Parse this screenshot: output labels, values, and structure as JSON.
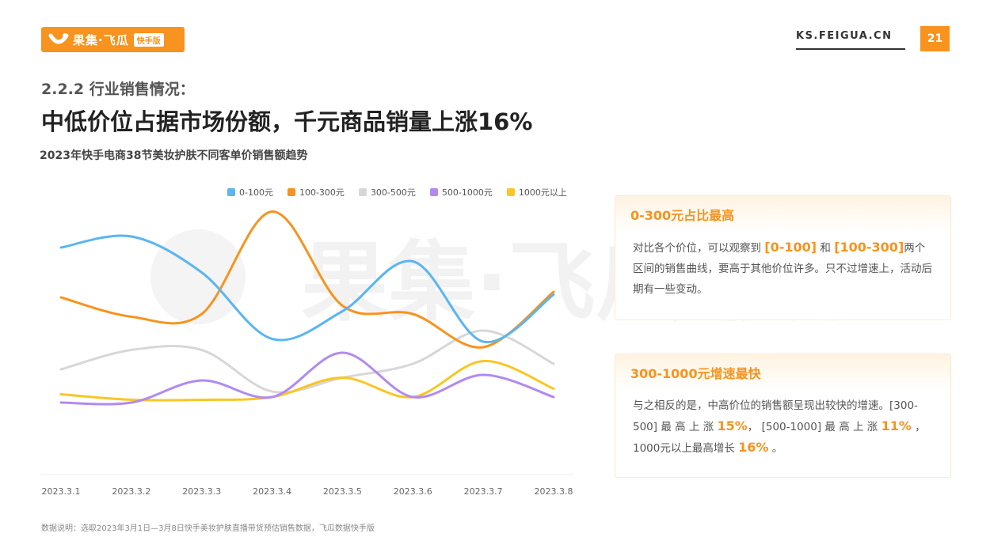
{
  "header": {
    "logo_text": "果集·飞瓜",
    "logo_badge": "快手版",
    "site": "KS.FEIGUA.CN",
    "page_number": "21"
  },
  "section_label": "2.2.2 行业销售情况：",
  "headline": "中低价位占据市场份额，千元商品销量上涨16%",
  "chart_title": "2023年快手电商38节美妆护肤不同客单价销售额趋势",
  "watermark": "果集·飞瓜 快手版",
  "chart_data": {
    "type": "line",
    "x": [
      "2023.3.1",
      "2023.3.2",
      "2023.3.3",
      "2023.3.4",
      "2023.3.5",
      "2023.3.6",
      "2023.3.7",
      "2023.3.8"
    ],
    "ylim": [
      0,
      100
    ],
    "grid": false,
    "legend_position": "top",
    "series": [
      {
        "name": "0-100元",
        "color": "#5bb5f0",
        "values": [
          82,
          86,
          73,
          49,
          59,
          77,
          48,
          65
        ]
      },
      {
        "name": "100-300元",
        "color": "#f7931e",
        "values": [
          64,
          57,
          58,
          95,
          61,
          58,
          46,
          66
        ]
      },
      {
        "name": "300-500元",
        "color": "#d7d7d7",
        "values": [
          38,
          45,
          45,
          30,
          35,
          40,
          52,
          40
        ]
      },
      {
        "name": "500-1000元",
        "color": "#b18af0",
        "values": [
          26,
          26,
          34,
          28,
          44,
          28,
          36,
          28
        ]
      },
      {
        "name": "1000元以上",
        "color": "#f9c623",
        "values": [
          29,
          27,
          27,
          28,
          35,
          28,
          41,
          31
        ]
      }
    ]
  },
  "note": "数据说明：选取2023年3月1日—3月8日快手美妆护肤直播带货预估销售数据，飞瓜数据快手版",
  "card1": {
    "title": "0-300元占比最高",
    "p1": "对比各个价位，可以观察到 ",
    "hl1": "[0-100]",
    "p2": " 和 ",
    "hl2": "[100-300]",
    "p3": "两个区间的销售曲线，要高于其他价位许多。只不过增速上，活动后期有一些变动。"
  },
  "card2": {
    "title": "300-1000元增速最快",
    "p1": "与之相反的是，中高价位的销售额呈现出较快的增速。[300-500] 最 高 上 涨 ",
    "hl1": "15%",
    "p2": "， [500-1000] 最 高 上 涨 ",
    "hl2": "11%",
    "p3": " ，1000元以上最高增长 ",
    "hl3": "16%",
    "p4": " 。"
  },
  "colors": {
    "brand": "#f7931e"
  }
}
